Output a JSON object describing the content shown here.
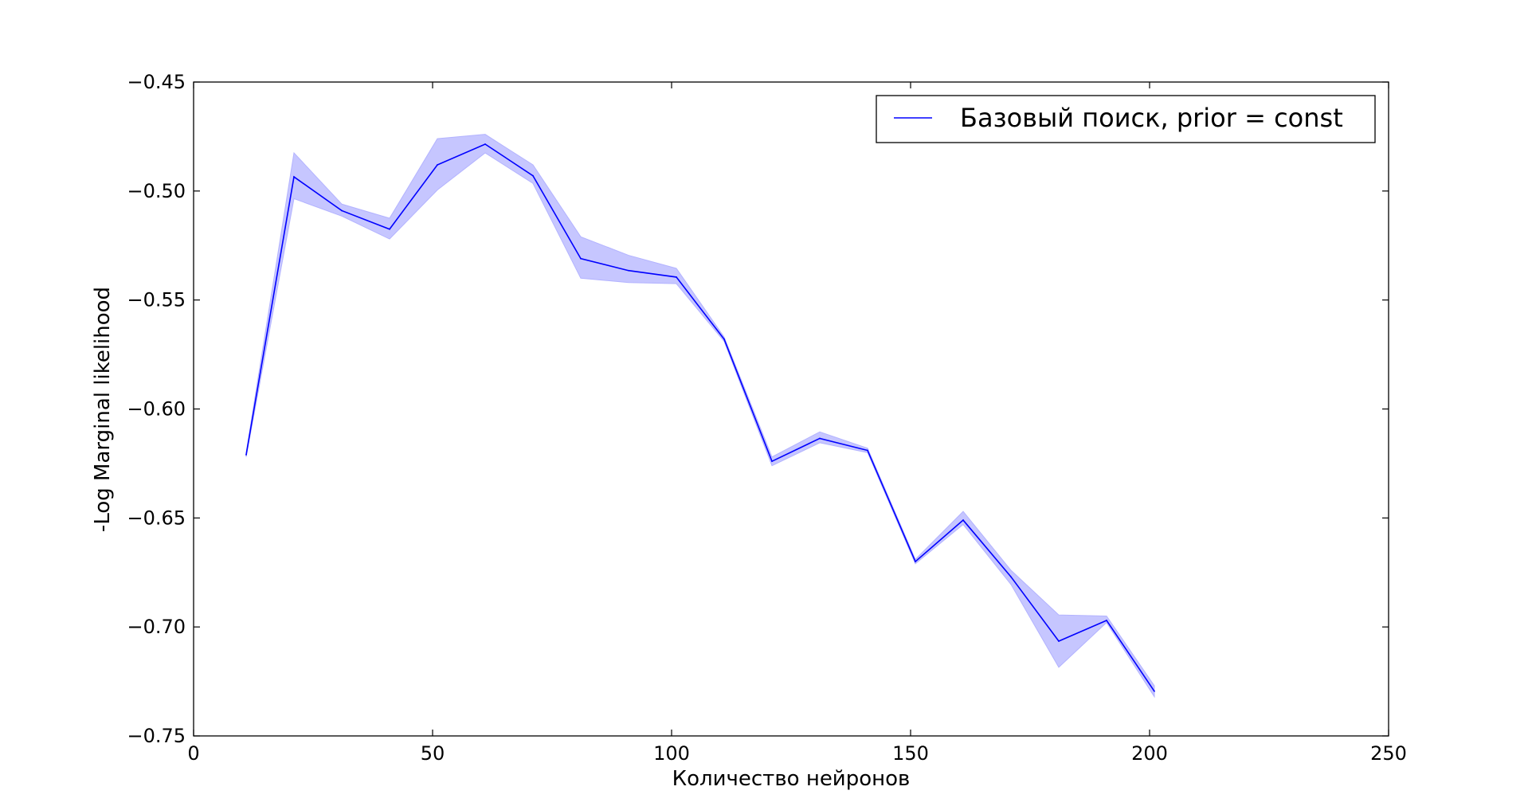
{
  "chart_data": {
    "type": "line",
    "title": "",
    "xlabel": "Количество нейронов",
    "ylabel": "-Log Marginal likelihood",
    "xlim": [
      0,
      250
    ],
    "ylim": [
      -0.75,
      -0.45
    ],
    "xticks": [
      0,
      50,
      100,
      150,
      200,
      250
    ],
    "xtick_labels": [
      "0",
      "50",
      "100",
      "150",
      "200",
      "250"
    ],
    "yticks": [
      -0.45,
      -0.5,
      -0.55,
      -0.6,
      -0.65,
      -0.7,
      -0.75
    ],
    "ytick_labels": [
      "−0.45",
      "−0.50",
      "−0.55",
      "−0.60",
      "−0.65",
      "−0.70",
      "−0.75"
    ],
    "grid": false,
    "legend_position": "top-right",
    "series": [
      {
        "name": "Базовый поиск, prior = const",
        "color": "#0000ff",
        "band_color": "#b3b3ff",
        "x": [
          11,
          21,
          31,
          41,
          51,
          61,
          71,
          81,
          91,
          101,
          111,
          121,
          131,
          141,
          151,
          161,
          171,
          181,
          191,
          201
        ],
        "y": [
          -0.621,
          -0.4935,
          -0.509,
          -0.5175,
          -0.488,
          -0.4785,
          -0.493,
          -0.531,
          -0.5365,
          -0.5395,
          -0.568,
          -0.624,
          -0.6135,
          -0.619,
          -0.67,
          -0.651,
          -0.677,
          -0.7065,
          -0.697,
          -0.7295
        ],
        "upper": [
          -0.62,
          -0.4825,
          -0.506,
          -0.5125,
          -0.476,
          -0.474,
          -0.488,
          -0.521,
          -0.5295,
          -0.5355,
          -0.567,
          -0.622,
          -0.6105,
          -0.618,
          -0.669,
          -0.647,
          -0.674,
          -0.6945,
          -0.695,
          -0.727
        ],
        "lower": [
          -0.622,
          -0.5035,
          -0.5115,
          -0.522,
          -0.4995,
          -0.4825,
          -0.4965,
          -0.54,
          -0.542,
          -0.5425,
          -0.569,
          -0.626,
          -0.6155,
          -0.62,
          -0.671,
          -0.653,
          -0.6805,
          -0.7185,
          -0.698,
          -0.732
        ]
      }
    ]
  }
}
